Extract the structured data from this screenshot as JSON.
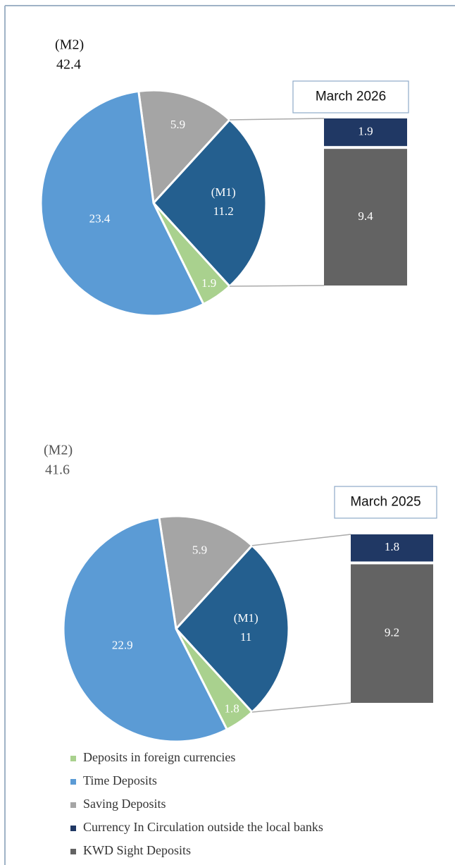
{
  "chart_data": [
    {
      "type": "pie",
      "title": "March 2026",
      "total_label": "(M2)",
      "total": 42.4,
      "pie_values": [
        1.9,
        23.4,
        5.9,
        11.2
      ],
      "m1_label": "(M1)",
      "m1_color": "#245f8f",
      "bar_values": [
        1.9,
        9.4
      ]
    },
    {
      "type": "pie",
      "title": "March 2025",
      "total_label": "(M2)",
      "total": 41.6,
      "pie_values": [
        1.8,
        22.9,
        5.9,
        11.0
      ],
      "m1_label": "(M1)",
      "m1_color": "#245f8f",
      "bar_values": [
        1.8,
        9.2
      ]
    }
  ],
  "legend": {
    "names": [
      "Deposits in foreign currencies",
      "Time Deposits",
      "Saving Deposits",
      "Currency In Circulation outside the local banks",
      "KWD Sight Deposits"
    ],
    "colors": [
      "#a9d18e",
      "#5b9bd5",
      "#a5a5a5",
      "#203864",
      "#636363"
    ]
  }
}
